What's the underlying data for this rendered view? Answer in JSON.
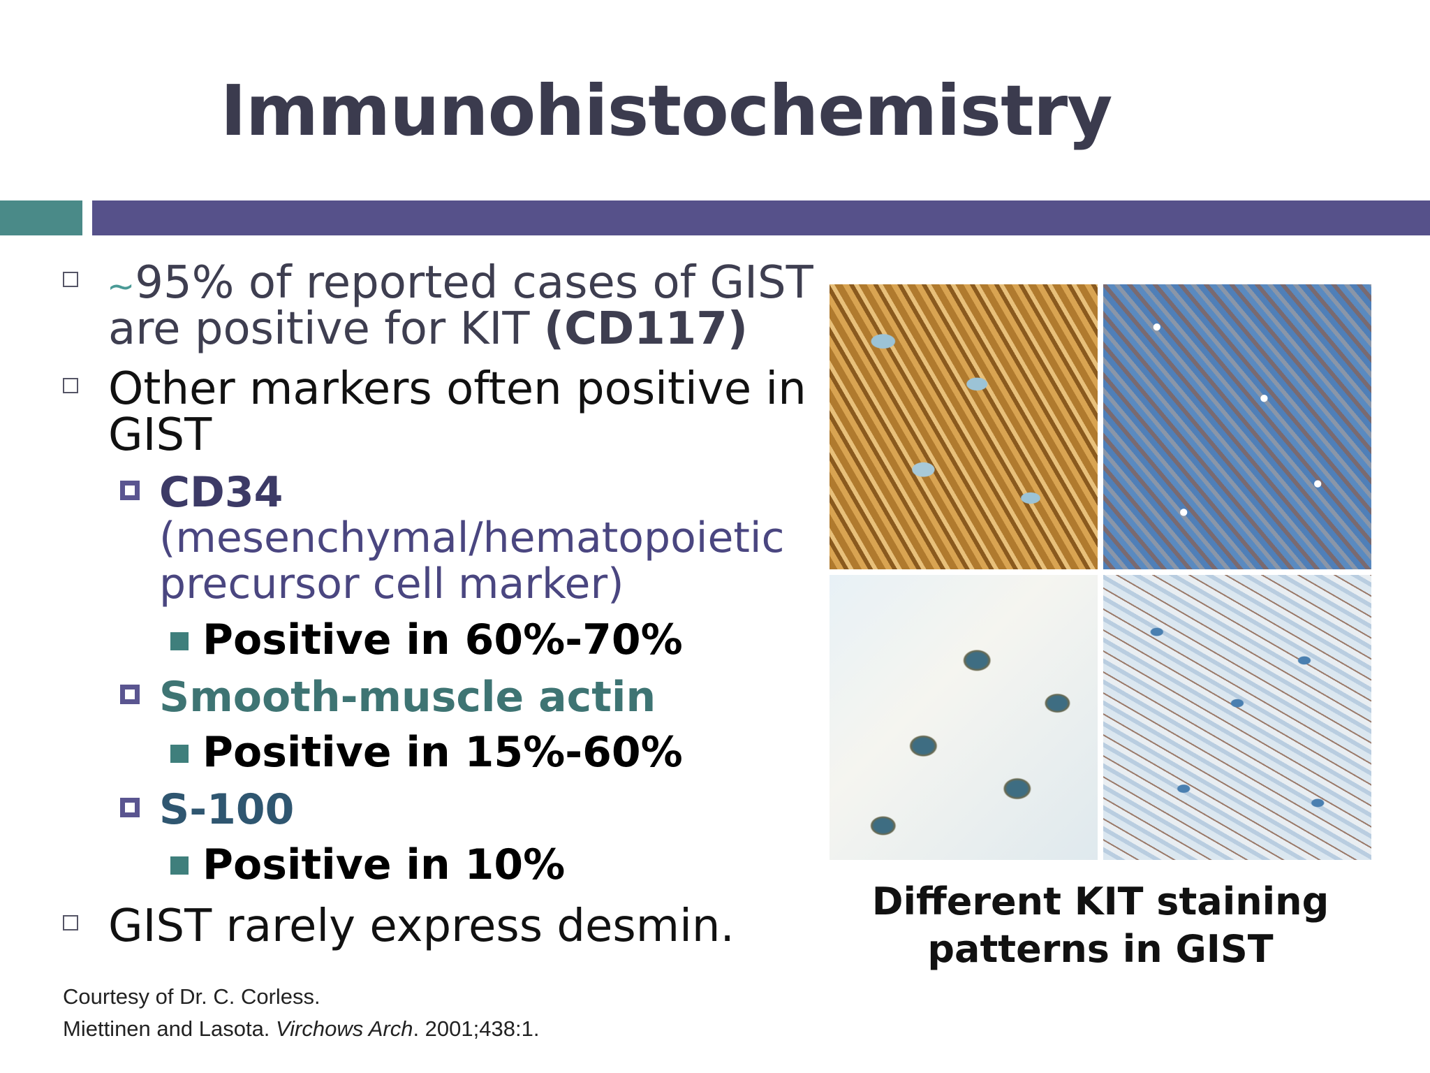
{
  "slide": {
    "title": "Immunohistochemistry",
    "colors": {
      "title": "#3b3b4e",
      "accent_bar": "#56518a",
      "accent_teal": "#4a8a88",
      "sub_bullet": "#5a5590",
      "green_bullet": "#3f7f7c"
    },
    "bullets": {
      "b1_tilde": "~",
      "b1_line1": "95% of reported cases of GIST",
      "b1_line2_prefix": "are positive for KIT ",
      "b1_line2_bold": "(CD117)",
      "b2_line1": "Other markers often positive in",
      "b2_line2": "GIST",
      "cd34_label": "CD34",
      "cd34_desc_line1": "(mesenchymal/hematopoietic",
      "cd34_desc_line2": "precursor cell marker)",
      "cd34_pos": "Positive in 60%-70%",
      "sma_label": "Smooth-muscle actin",
      "sma_pos": "Positive in 15%-60%",
      "s100_label": "S-100",
      "s100_pos": "Positive in 10%",
      "b3": "GIST rarely express desmin."
    },
    "figure_caption_line1": "Different KIT staining",
    "figure_caption_line2": "patterns in GIST",
    "credits": {
      "line1": "Courtesy of Dr. C. Corless.",
      "line2_prefix": "Miettinen and Lasota. ",
      "line2_italic": "Virchows Arch",
      "line2_suffix": ". 2001;438:1."
    }
  }
}
